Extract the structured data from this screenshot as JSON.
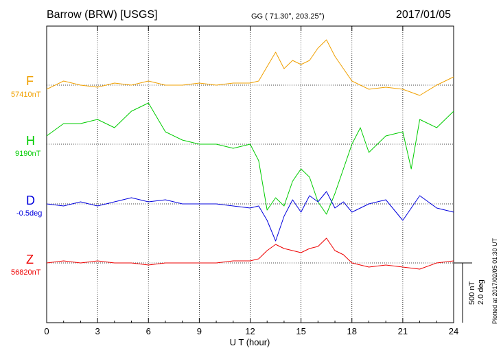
{
  "header": {
    "station": "Barrow (BRW)  [USGS]",
    "coords": "GG ( 71.30°, 203.25°)",
    "date": "2017/01/05"
  },
  "scale": {
    "line1": "500 nT",
    "line2": "2.0 deg"
  },
  "plotted_note": "Plotted at 2017/02/05 01:30 UT",
  "chart_data": {
    "type": "line",
    "xlabel": "U T (hour)",
    "xlim": [
      0,
      24
    ],
    "xticks": [
      "0",
      "3",
      "6",
      "9",
      "12",
      "15",
      "18",
      "21",
      "24"
    ],
    "grid": true,
    "series": [
      {
        "name": "F",
        "baseline": "57410nT",
        "color": "#f0a000",
        "x": [
          0,
          1,
          2,
          3,
          4,
          5,
          6,
          7,
          8,
          9,
          10,
          11,
          12,
          12.5,
          13,
          13.5,
          14,
          14.5,
          15,
          15.5,
          16,
          16.5,
          17,
          17.5,
          18,
          18.5,
          19,
          20,
          21,
          22,
          23,
          24
        ],
        "y": [
          -10,
          10,
          0,
          -5,
          5,
          0,
          10,
          0,
          0,
          5,
          0,
          5,
          5,
          10,
          45,
          80,
          40,
          60,
          50,
          60,
          90,
          110,
          70,
          40,
          10,
          0,
          -10,
          -5,
          -10,
          -25,
          0,
          20
        ]
      },
      {
        "name": "H",
        "baseline": "9190nT",
        "color": "#00cc00",
        "x": [
          0,
          1,
          2,
          3,
          4,
          5,
          6,
          7,
          8,
          9,
          10,
          11,
          12,
          12.5,
          13,
          13.5,
          14,
          14.5,
          15,
          15.5,
          16,
          16.5,
          17,
          17.5,
          18,
          18.5,
          19,
          20,
          21,
          21.5,
          22,
          23,
          24
        ],
        "y": [
          20,
          50,
          50,
          60,
          40,
          80,
          100,
          30,
          10,
          0,
          0,
          -10,
          0,
          -40,
          -160,
          -130,
          -150,
          -90,
          -60,
          -80,
          -140,
          -170,
          -120,
          -60,
          0,
          40,
          -20,
          20,
          30,
          -60,
          60,
          40,
          80
        ]
      },
      {
        "name": "D",
        "baseline": "-0.5deg",
        "color": "#0000dd",
        "x": [
          0,
          1,
          2,
          3,
          4,
          5,
          6,
          7,
          8,
          9,
          10,
          11,
          12,
          12.5,
          13,
          13.5,
          14,
          14.5,
          15,
          15.5,
          16,
          16.5,
          17,
          17.5,
          18,
          18.5,
          19,
          20,
          21,
          22,
          23,
          24
        ],
        "y": [
          0,
          -5,
          5,
          -5,
          5,
          15,
          5,
          10,
          0,
          0,
          0,
          -5,
          -10,
          -5,
          -40,
          -90,
          -30,
          10,
          -20,
          20,
          5,
          30,
          -10,
          5,
          -20,
          -10,
          0,
          10,
          -40,
          20,
          -10,
          -20
        ]
      },
      {
        "name": "Z",
        "baseline": "56820nT",
        "color": "#ee0000",
        "x": [
          0,
          1,
          2,
          3,
          4,
          5,
          6,
          7,
          8,
          9,
          10,
          11,
          12,
          12.5,
          13,
          13.5,
          14,
          14.5,
          15,
          15.5,
          16,
          16.5,
          17,
          17.5,
          18,
          18.5,
          19,
          20,
          21,
          22,
          23,
          24
        ],
        "y": [
          0,
          5,
          0,
          5,
          0,
          0,
          -5,
          0,
          0,
          0,
          0,
          5,
          5,
          10,
          30,
          45,
          35,
          30,
          25,
          35,
          40,
          60,
          30,
          20,
          0,
          -5,
          -10,
          -5,
          -10,
          -15,
          0,
          5
        ]
      }
    ]
  }
}
